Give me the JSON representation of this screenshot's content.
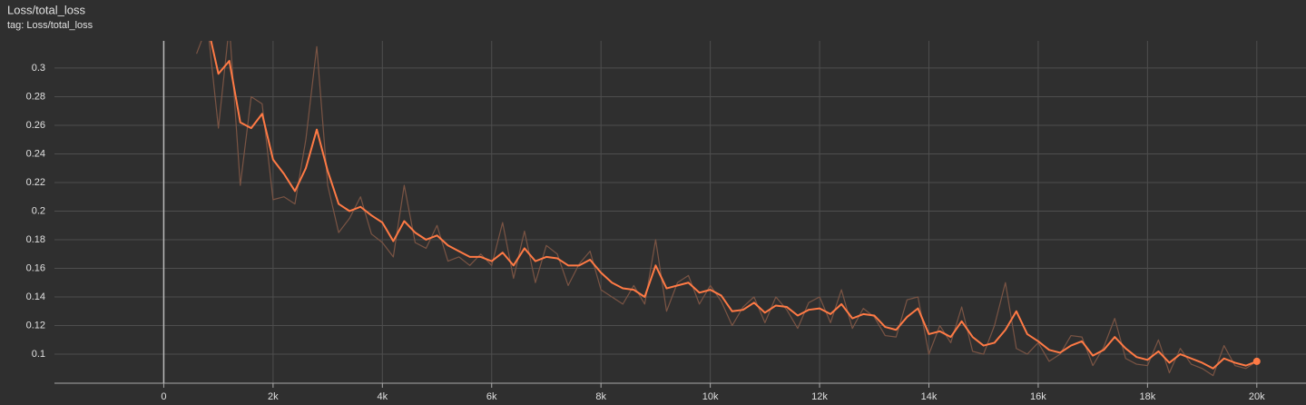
{
  "chart_data": {
    "type": "line",
    "title": "Loss/total_loss",
    "subtitle": "tag: Loss/total_loss",
    "x": [
      600,
      800,
      1000,
      1200,
      1400,
      1600,
      1800,
      2000,
      2200,
      2400,
      2600,
      2800,
      3000,
      3200,
      3400,
      3600,
      3800,
      4000,
      4200,
      4400,
      4600,
      4800,
      5000,
      5200,
      5400,
      5600,
      5800,
      6000,
      6200,
      6400,
      6600,
      6800,
      7000,
      7200,
      7400,
      7600,
      7800,
      8000,
      8200,
      8400,
      8600,
      8800,
      9000,
      9200,
      9400,
      9600,
      9800,
      10000,
      10200,
      10400,
      10600,
      10800,
      11000,
      11200,
      11400,
      11600,
      11800,
      12000,
      12200,
      12400,
      12600,
      12800,
      13000,
      13200,
      13400,
      13600,
      13800,
      14000,
      14200,
      14400,
      14600,
      14800,
      15000,
      15200,
      15400,
      15600,
      15800,
      16000,
      16200,
      16400,
      16600,
      16800,
      17000,
      17200,
      17400,
      17600,
      17800,
      18000,
      18200,
      18400,
      18600,
      18800,
      19000,
      19200,
      19400,
      19600,
      19800,
      20000
    ],
    "series": [
      {
        "color": "#7a5444",
        "values": [
          0.31,
          0.33,
          0.258,
          0.33,
          0.218,
          0.28,
          0.275,
          0.208,
          0.21,
          0.205,
          0.25,
          0.315,
          0.218,
          0.185,
          0.195,
          0.21,
          0.184,
          0.178,
          0.168,
          0.218,
          0.178,
          0.174,
          0.19,
          0.165,
          0.168,
          0.162,
          0.17,
          0.162,
          0.192,
          0.153,
          0.186,
          0.15,
          0.176,
          0.17,
          0.148,
          0.163,
          0.172,
          0.145,
          0.14,
          0.135,
          0.148,
          0.135,
          0.18,
          0.13,
          0.15,
          0.155,
          0.135,
          0.148,
          0.137,
          0.12,
          0.133,
          0.14,
          0.122,
          0.14,
          0.131,
          0.118,
          0.136,
          0.14,
          0.122,
          0.145,
          0.118,
          0.132,
          0.126,
          0.113,
          0.112,
          0.138,
          0.14,
          0.1,
          0.12,
          0.108,
          0.133,
          0.102,
          0.1,
          0.12,
          0.15,
          0.104,
          0.1,
          0.108,
          0.095,
          0.1,
          0.113,
          0.112,
          0.092,
          0.105,
          0.125,
          0.097,
          0.093,
          0.092,
          0.11,
          0.087,
          0.104,
          0.093,
          0.09,
          0.085,
          0.106,
          0.092,
          0.09,
          0.095
        ]
      },
      {
        "color": "#ff7a45",
        "values": [
          null,
          0.33,
          0.296,
          0.305,
          0.262,
          0.258,
          0.268,
          0.236,
          0.226,
          0.214,
          0.23,
          0.257,
          0.228,
          0.205,
          0.2,
          0.203,
          0.197,
          0.192,
          0.179,
          0.193,
          0.185,
          0.18,
          0.183,
          0.176,
          0.172,
          0.168,
          0.168,
          0.165,
          0.171,
          0.162,
          0.174,
          0.165,
          0.168,
          0.167,
          0.162,
          0.162,
          0.166,
          0.157,
          0.15,
          0.146,
          0.145,
          0.14,
          0.162,
          0.146,
          0.148,
          0.15,
          0.143,
          0.145,
          0.141,
          0.13,
          0.131,
          0.136,
          0.129,
          0.134,
          0.133,
          0.127,
          0.131,
          0.132,
          0.128,
          0.135,
          0.125,
          0.128,
          0.127,
          0.119,
          0.117,
          0.126,
          0.132,
          0.114,
          0.116,
          0.112,
          0.123,
          0.112,
          0.106,
          0.108,
          0.117,
          0.13,
          0.114,
          0.109,
          0.103,
          0.101,
          0.106,
          0.109,
          0.099,
          0.103,
          0.112,
          0.104,
          0.098,
          0.096,
          0.102,
          0.094,
          0.1,
          0.097,
          0.094,
          0.09,
          0.097,
          0.094,
          0.092,
          0.095
        ]
      }
    ],
    "xlim": [
      -2000,
      20900
    ],
    "ylim": [
      0.0797,
      0.319
    ],
    "xticks": [
      0,
      {
        "value": 2000,
        "label": "2k"
      },
      {
        "value": 4000,
        "label": "4k"
      },
      {
        "value": 6000,
        "label": "6k"
      },
      {
        "value": 8000,
        "label": "8k"
      },
      {
        "value": 10000,
        "label": "10k"
      },
      {
        "value": 12000,
        "label": "12k"
      },
      {
        "value": 14000,
        "label": "14k"
      },
      {
        "value": 16000,
        "label": "16k"
      },
      {
        "value": 18000,
        "label": "18k"
      },
      {
        "value": 20000,
        "label": "20k"
      }
    ],
    "yticks": [
      0.1,
      0.12,
      0.14,
      0.16,
      0.18,
      0.2,
      0.22,
      0.24,
      0.26,
      0.28,
      0.3
    ],
    "grid": true
  }
}
